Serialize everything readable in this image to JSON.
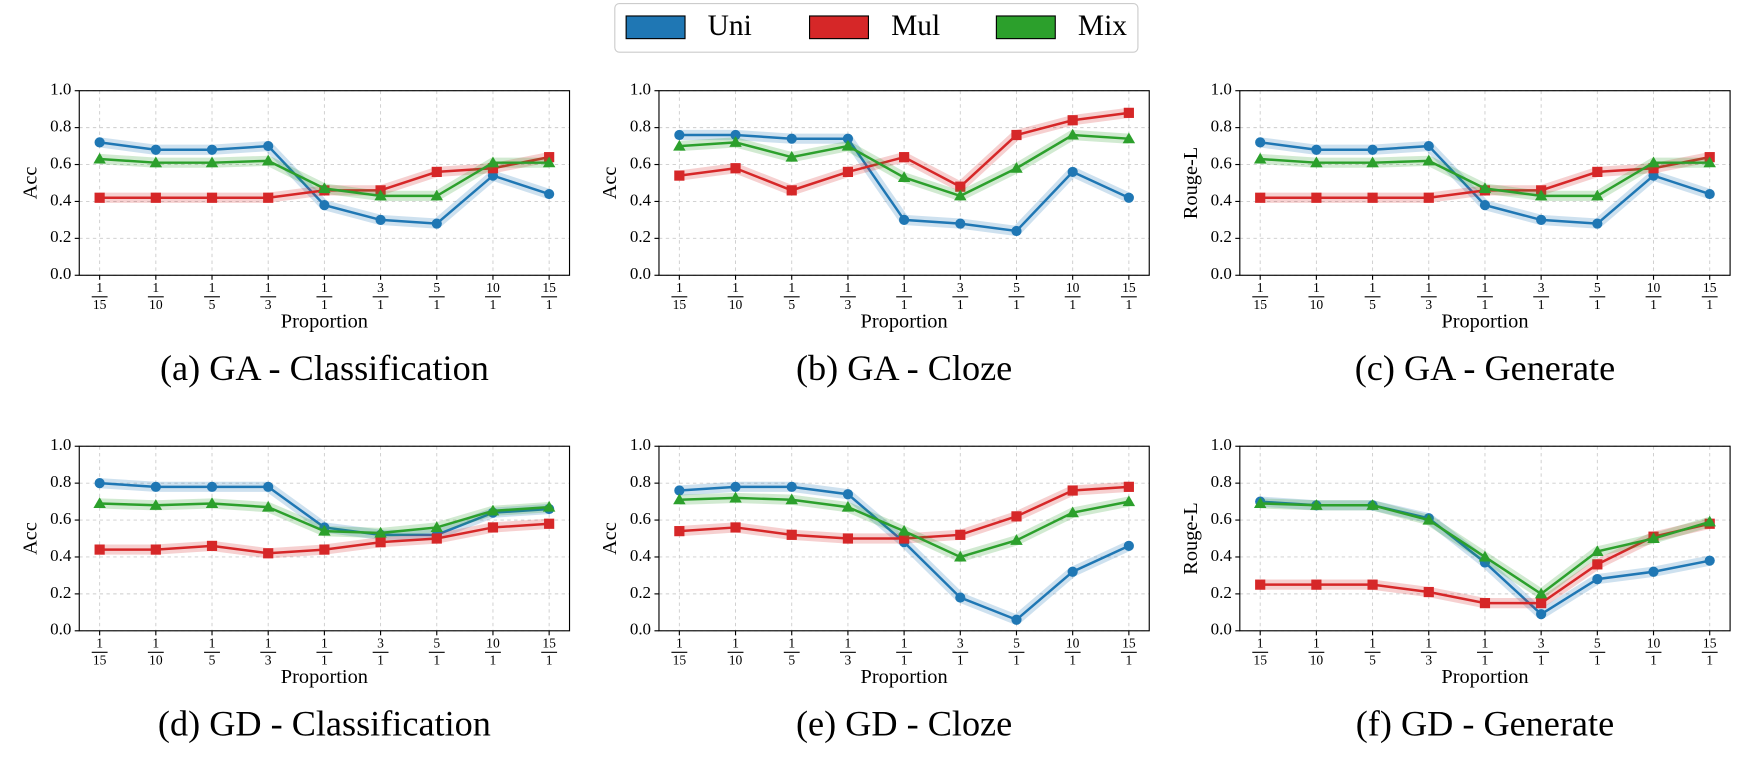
{
  "chart_data": [
    {
      "type": "line",
      "title": "(a) GA - Classification",
      "xlabel": "Proportion",
      "ylabel": "Acc",
      "categories": [
        {
          "numerator": "1",
          "denominator": "15"
        },
        {
          "numerator": "1",
          "denominator": "10"
        },
        {
          "numerator": "1",
          "denominator": "5"
        },
        {
          "numerator": "1",
          "denominator": "3"
        },
        {
          "numerator": "1",
          "denominator": "1"
        },
        {
          "numerator": "3",
          "denominator": "1"
        },
        {
          "numerator": "5",
          "denominator": "1"
        },
        {
          "numerator": "10",
          "denominator": "1"
        },
        {
          "numerator": "15",
          "denominator": "1"
        }
      ],
      "series": [
        {
          "name": "Uni",
          "color": "#1f77b4",
          "marker": "circle",
          "values": [
            0.72,
            0.68,
            0.68,
            0.7,
            0.38,
            0.3,
            0.28,
            0.54,
            0.44
          ]
        },
        {
          "name": "Mul",
          "color": "#d62728",
          "marker": "square",
          "values": [
            0.42,
            0.42,
            0.42,
            0.42,
            0.46,
            0.46,
            0.56,
            0.58,
            0.64
          ]
        },
        {
          "name": "Mix",
          "color": "#2ca02c",
          "marker": "triangle",
          "values": [
            0.63,
            0.61,
            0.61,
            0.62,
            0.47,
            0.43,
            0.43,
            0.61,
            0.61
          ]
        }
      ],
      "ylim": [
        0,
        1
      ],
      "yticks": [
        {
          "value": 0,
          "label": "0.0"
        },
        {
          "value": 0.2,
          "label": "0.2"
        },
        {
          "value": 0.4,
          "label": "0.4"
        },
        {
          "value": 0.6,
          "label": "0.6"
        },
        {
          "value": 0.8,
          "label": "0.8"
        },
        {
          "value": 1,
          "label": "1.0"
        }
      ],
      "grid": true
    },
    {
      "type": "line",
      "title": "(b) GA - Cloze",
      "xlabel": "Proportion",
      "ylabel": "Acc",
      "categories": [
        {
          "numerator": "1",
          "denominator": "15"
        },
        {
          "numerator": "1",
          "denominator": "10"
        },
        {
          "numerator": "1",
          "denominator": "5"
        },
        {
          "numerator": "1",
          "denominator": "3"
        },
        {
          "numerator": "1",
          "denominator": "1"
        },
        {
          "numerator": "3",
          "denominator": "1"
        },
        {
          "numerator": "5",
          "denominator": "1"
        },
        {
          "numerator": "10",
          "denominator": "1"
        },
        {
          "numerator": "15",
          "denominator": "1"
        }
      ],
      "series": [
        {
          "name": "Uni",
          "color": "#1f77b4",
          "marker": "circle",
          "values": [
            0.76,
            0.76,
            0.74,
            0.74,
            0.3,
            0.28,
            0.24,
            0.56,
            0.42
          ]
        },
        {
          "name": "Mul",
          "color": "#d62728",
          "marker": "square",
          "values": [
            0.54,
            0.58,
            0.46,
            0.56,
            0.64,
            0.48,
            0.76,
            0.84,
            0.88
          ]
        },
        {
          "name": "Mix",
          "color": "#2ca02c",
          "marker": "triangle",
          "values": [
            0.7,
            0.72,
            0.64,
            0.7,
            0.53,
            0.43,
            0.58,
            0.76,
            0.74
          ]
        }
      ],
      "ylim": [
        0,
        1
      ],
      "yticks": [
        {
          "value": 0,
          "label": "0.0"
        },
        {
          "value": 0.2,
          "label": "0.2"
        },
        {
          "value": 0.4,
          "label": "0.4"
        },
        {
          "value": 0.6,
          "label": "0.6"
        },
        {
          "value": 0.8,
          "label": "0.8"
        },
        {
          "value": 1,
          "label": "1.0"
        }
      ],
      "grid": true
    },
    {
      "type": "line",
      "title": "(c) GA - Generate",
      "xlabel": "Proportion",
      "ylabel": "Rouge-L",
      "categories": [
        {
          "numerator": "1",
          "denominator": "15"
        },
        {
          "numerator": "1",
          "denominator": "10"
        },
        {
          "numerator": "1",
          "denominator": "5"
        },
        {
          "numerator": "1",
          "denominator": "3"
        },
        {
          "numerator": "1",
          "denominator": "1"
        },
        {
          "numerator": "3",
          "denominator": "1"
        },
        {
          "numerator": "5",
          "denominator": "1"
        },
        {
          "numerator": "10",
          "denominator": "1"
        },
        {
          "numerator": "15",
          "denominator": "1"
        }
      ],
      "series": [
        {
          "name": "Uni",
          "color": "#1f77b4",
          "marker": "circle",
          "values": [
            0.72,
            0.68,
            0.68,
            0.7,
            0.38,
            0.3,
            0.28,
            0.54,
            0.44
          ]
        },
        {
          "name": "Mul",
          "color": "#d62728",
          "marker": "square",
          "values": [
            0.42,
            0.42,
            0.42,
            0.42,
            0.46,
            0.46,
            0.56,
            0.58,
            0.64
          ]
        },
        {
          "name": "Mix",
          "color": "#2ca02c",
          "marker": "triangle",
          "values": [
            0.63,
            0.61,
            0.61,
            0.62,
            0.47,
            0.43,
            0.43,
            0.61,
            0.61
          ]
        }
      ],
      "ylim": [
        0,
        1
      ],
      "yticks": [
        {
          "value": 0,
          "label": "0.0"
        },
        {
          "value": 0.2,
          "label": "0.2"
        },
        {
          "value": 0.4,
          "label": "0.4"
        },
        {
          "value": 0.6,
          "label": "0.6"
        },
        {
          "value": 0.8,
          "label": "0.8"
        },
        {
          "value": 1,
          "label": "1.0"
        }
      ],
      "grid": true
    },
    {
      "type": "line",
      "title": "(d) GD - Classification",
      "xlabel": "Proportion",
      "ylabel": "Acc",
      "categories": [
        {
          "numerator": "1",
          "denominator": "15"
        },
        {
          "numerator": "1",
          "denominator": "10"
        },
        {
          "numerator": "1",
          "denominator": "5"
        },
        {
          "numerator": "1",
          "denominator": "3"
        },
        {
          "numerator": "1",
          "denominator": "1"
        },
        {
          "numerator": "3",
          "denominator": "1"
        },
        {
          "numerator": "5",
          "denominator": "1"
        },
        {
          "numerator": "10",
          "denominator": "1"
        },
        {
          "numerator": "15",
          "denominator": "1"
        }
      ],
      "series": [
        {
          "name": "Uni",
          "color": "#1f77b4",
          "marker": "circle",
          "values": [
            0.8,
            0.78,
            0.78,
            0.78,
            0.56,
            0.52,
            0.52,
            0.64,
            0.66
          ]
        },
        {
          "name": "Mul",
          "color": "#d62728",
          "marker": "square",
          "values": [
            0.44,
            0.44,
            0.46,
            0.42,
            0.44,
            0.48,
            0.5,
            0.56,
            0.58
          ]
        },
        {
          "name": "Mix",
          "color": "#2ca02c",
          "marker": "triangle",
          "values": [
            0.69,
            0.68,
            0.69,
            0.67,
            0.54,
            0.53,
            0.56,
            0.65,
            0.67
          ]
        }
      ],
      "ylim": [
        0,
        1
      ],
      "yticks": [
        {
          "value": 0,
          "label": "0.0"
        },
        {
          "value": 0.2,
          "label": "0.2"
        },
        {
          "value": 0.4,
          "label": "0.4"
        },
        {
          "value": 0.6,
          "label": "0.6"
        },
        {
          "value": 0.8,
          "label": "0.8"
        },
        {
          "value": 1,
          "label": "1.0"
        }
      ],
      "grid": true
    },
    {
      "type": "line",
      "title": "(e) GD - Cloze",
      "xlabel": "Proportion",
      "ylabel": "Acc",
      "categories": [
        {
          "numerator": "1",
          "denominator": "15"
        },
        {
          "numerator": "1",
          "denominator": "10"
        },
        {
          "numerator": "1",
          "denominator": "5"
        },
        {
          "numerator": "1",
          "denominator": "3"
        },
        {
          "numerator": "1",
          "denominator": "1"
        },
        {
          "numerator": "3",
          "denominator": "1"
        },
        {
          "numerator": "5",
          "denominator": "1"
        },
        {
          "numerator": "10",
          "denominator": "1"
        },
        {
          "numerator": "15",
          "denominator": "1"
        }
      ],
      "series": [
        {
          "name": "Uni",
          "color": "#1f77b4",
          "marker": "circle",
          "values": [
            0.76,
            0.78,
            0.78,
            0.74,
            0.48,
            0.18,
            0.06,
            0.32,
            0.46
          ]
        },
        {
          "name": "Mul",
          "color": "#d62728",
          "marker": "square",
          "values": [
            0.54,
            0.56,
            0.52,
            0.5,
            0.5,
            0.52,
            0.62,
            0.76,
            0.78
          ]
        },
        {
          "name": "Mix",
          "color": "#2ca02c",
          "marker": "triangle",
          "values": [
            0.71,
            0.72,
            0.71,
            0.67,
            0.54,
            0.4,
            0.49,
            0.64,
            0.7
          ]
        }
      ],
      "ylim": [
        0,
        1
      ],
      "yticks": [
        {
          "value": 0,
          "label": "0.0"
        },
        {
          "value": 0.2,
          "label": "0.2"
        },
        {
          "value": 0.4,
          "label": "0.4"
        },
        {
          "value": 0.6,
          "label": "0.6"
        },
        {
          "value": 0.8,
          "label": "0.8"
        },
        {
          "value": 1,
          "label": "1.0"
        }
      ],
      "grid": true
    },
    {
      "type": "line",
      "title": "(f) GD - Generate",
      "xlabel": "Proportion",
      "ylabel": "Rouge-L",
      "categories": [
        {
          "numerator": "1",
          "denominator": "15"
        },
        {
          "numerator": "1",
          "denominator": "10"
        },
        {
          "numerator": "1",
          "denominator": "5"
        },
        {
          "numerator": "1",
          "denominator": "3"
        },
        {
          "numerator": "1",
          "denominator": "1"
        },
        {
          "numerator": "3",
          "denominator": "1"
        },
        {
          "numerator": "5",
          "denominator": "1"
        },
        {
          "numerator": "10",
          "denominator": "1"
        },
        {
          "numerator": "15",
          "denominator": "1"
        }
      ],
      "series": [
        {
          "name": "Uni",
          "color": "#1f77b4",
          "marker": "circle",
          "values": [
            0.7,
            0.68,
            0.68,
            0.61,
            0.37,
            0.09,
            0.28,
            0.32,
            0.38
          ]
        },
        {
          "name": "Mul",
          "color": "#d62728",
          "marker": "square",
          "values": [
            0.25,
            0.25,
            0.25,
            0.21,
            0.15,
            0.15,
            0.36,
            0.51,
            0.58
          ]
        },
        {
          "name": "Mix",
          "color": "#2ca02c",
          "marker": "triangle",
          "values": [
            0.69,
            0.68,
            0.68,
            0.6,
            0.4,
            0.2,
            0.43,
            0.5,
            0.59
          ]
        }
      ],
      "ylim": [
        0,
        1
      ],
      "yticks": [
        {
          "value": 0,
          "label": "0.0"
        },
        {
          "value": 0.2,
          "label": "0.2"
        },
        {
          "value": 0.4,
          "label": "0.4"
        },
        {
          "value": 0.6,
          "label": "0.6"
        },
        {
          "value": 0.8,
          "label": "0.8"
        },
        {
          "value": 1,
          "label": "1.0"
        }
      ],
      "grid": true
    }
  ]
}
